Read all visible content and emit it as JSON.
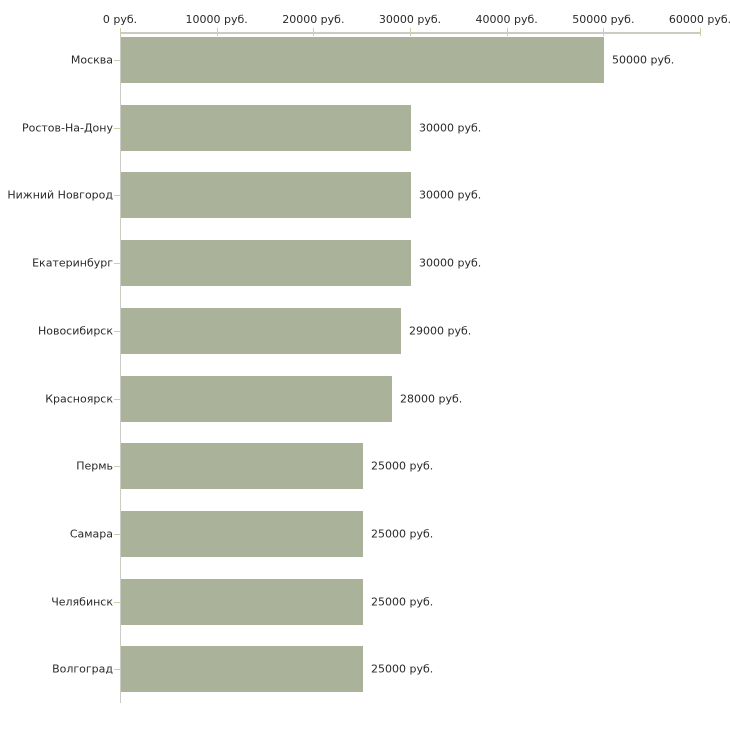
{
  "chart_data": {
    "type": "bar",
    "orientation": "horizontal",
    "title": "",
    "categories": [
      "Москва",
      "Ростов-На-Дону",
      "Нижний Новгород",
      "Екатеринбург",
      "Новосибирск",
      "Красноярск",
      "Пермь",
      "Самара",
      "Челябинск",
      "Волгоград"
    ],
    "values": [
      50000,
      30000,
      30000,
      30000,
      29000,
      28000,
      25000,
      25000,
      25000,
      25000
    ],
    "value_labels": [
      "50000 руб.",
      "30000 руб.",
      "30000 руб.",
      "30000 руб.",
      "29000 руб.",
      "28000 руб.",
      "25000 руб.",
      "25000 руб.",
      "25000 руб.",
      "25000 руб."
    ],
    "unit": "руб.",
    "xlabel": "",
    "ylabel": "",
    "x_axis": {
      "position": "top",
      "range": [
        0,
        60000
      ],
      "ticks": [
        0,
        10000,
        20000,
        30000,
        40000,
        50000,
        60000
      ],
      "tick_labels": [
        "0 руб.",
        "10000 руб.",
        "20000 руб.",
        "30000 руб.",
        "40000 руб.",
        "50000 руб.",
        "60000 руб."
      ]
    },
    "grid": false,
    "legend": false,
    "colors": {
      "bar": "#aab399",
      "axis_line": "#cbcbc3",
      "tick": "#cfcfa4",
      "text": "#2a2a2a",
      "background": "#ffffff"
    }
  }
}
